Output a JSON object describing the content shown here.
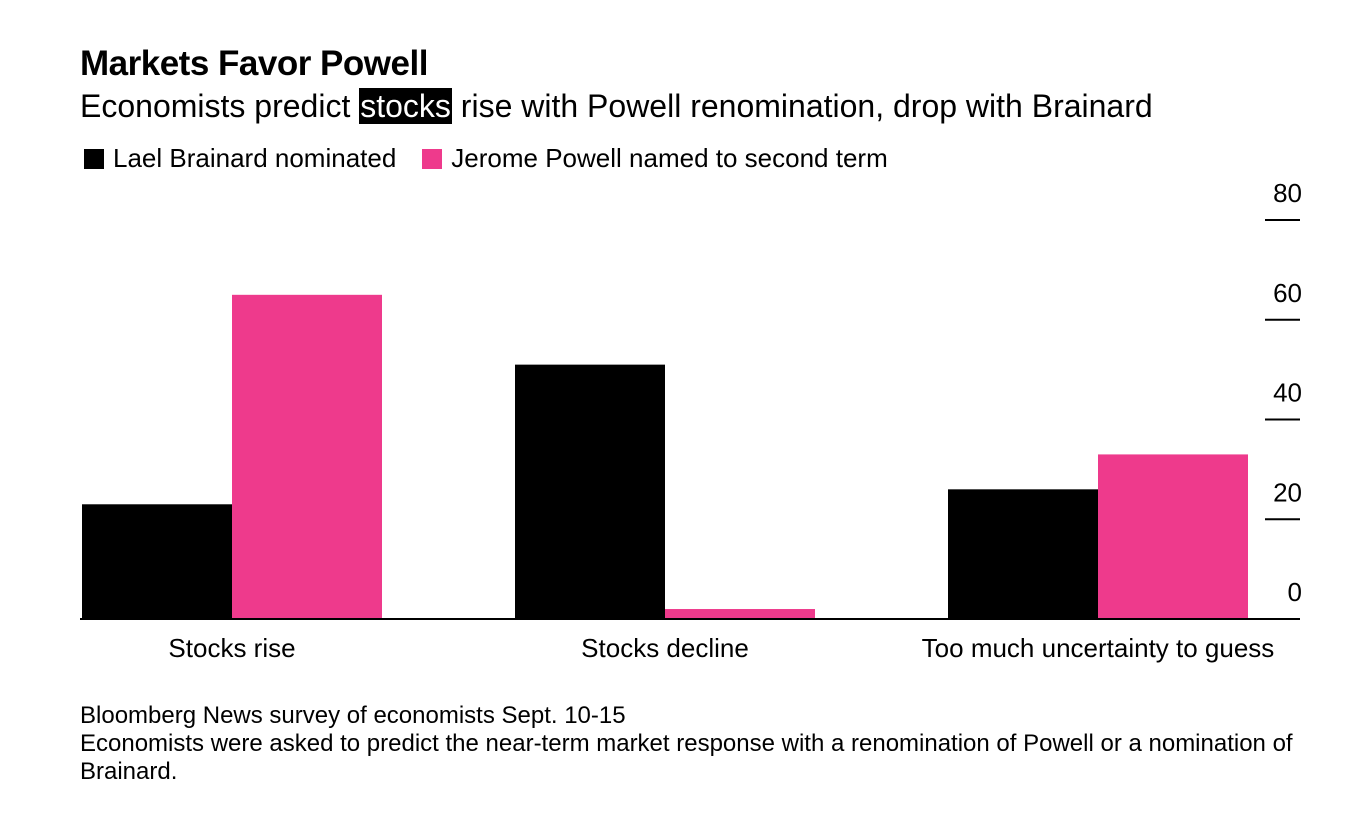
{
  "title": "Markets Favor Powell",
  "subtitle": {
    "before": "Economists predict ",
    "highlight": "stocks",
    "after": " rise with Powell renomination, drop with Brainard"
  },
  "colors": {
    "brainard": "#000000",
    "powell": "#ee3a8c",
    "axis": "#000000",
    "background": "#ffffff"
  },
  "chart_data": {
    "type": "bar",
    "categories": [
      "Stocks rise",
      "Stocks decline",
      "Too much uncertainty to guess"
    ],
    "series": [
      {
        "name": "Lael Brainard nominated",
        "values": [
          23,
          51,
          26
        ]
      },
      {
        "name": "Jerome Powell named to second term",
        "values": [
          65,
          2,
          33
        ]
      }
    ],
    "yticks": [
      0,
      20,
      40,
      60,
      80
    ],
    "ylim": [
      0,
      80
    ],
    "y_axis_side": "right",
    "legend_position": "top-left",
    "grid": false
  },
  "footnote": {
    "source": "Bloomberg News survey of economists Sept. 10-15",
    "note": "Economists were asked to predict the near-term market response with a renomination of Powell or a nomination of Brainard."
  }
}
